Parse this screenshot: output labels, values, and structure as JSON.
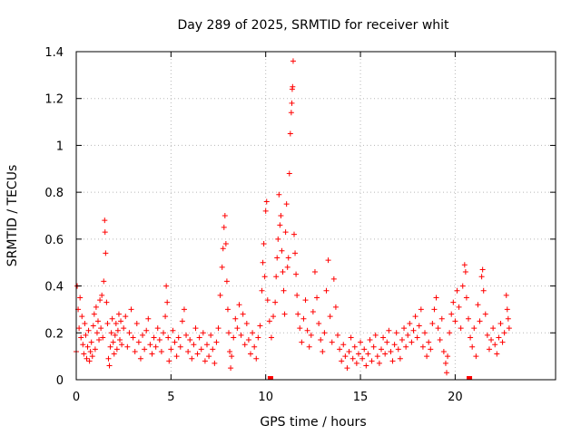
{
  "chart_data": {
    "type": "scatter",
    "title": "Day 289 of 2025, SRMTID for receiver whit",
    "xlabel": "GPS time / hours",
    "ylabel": "SRMTID / TECUs",
    "xlim": [
      0,
      25.3
    ],
    "ylim": [
      0,
      1.4
    ],
    "grid": true,
    "marker": "plus",
    "color": "#ff0000",
    "x_ticks": [
      0,
      5,
      10,
      15,
      20
    ],
    "x_tick_labels": [
      "0",
      "5",
      "10",
      "15",
      "20"
    ],
    "y_ticks": [
      0,
      0.2,
      0.4,
      0.6,
      0.8,
      1.0,
      1.2,
      1.4
    ],
    "y_tick_labels": [
      "0",
      "0.2",
      "0.4",
      "0.6",
      "0.8",
      "1",
      "1.2",
      "1.4"
    ],
    "series": [
      {
        "name": "SRMTID",
        "points": [
          [
            0.0,
            0.12
          ],
          [
            0.05,
            0.4
          ],
          [
            0.1,
            0.3
          ],
          [
            0.15,
            0.22
          ],
          [
            0.2,
            0.35
          ],
          [
            0.25,
            0.18
          ],
          [
            0.3,
            0.27
          ],
          [
            0.35,
            0.15
          ],
          [
            0.4,
            0.11
          ],
          [
            0.45,
            0.24
          ],
          [
            0.5,
            0.19
          ],
          [
            0.55,
            0.09
          ],
          [
            0.6,
            0.14
          ],
          [
            0.65,
            0.21
          ],
          [
            0.7,
            0.08
          ],
          [
            0.75,
            0.12
          ],
          [
            0.8,
            0.16
          ],
          [
            0.85,
            0.1
          ],
          [
            0.9,
            0.23
          ],
          [
            0.95,
            0.28
          ],
          [
            1.0,
            0.13
          ],
          [
            1.05,
            0.31
          ],
          [
            1.1,
            0.2
          ],
          [
            1.15,
            0.25
          ],
          [
            1.2,
            0.17
          ],
          [
            1.25,
            0.34
          ],
          [
            1.3,
            0.22
          ],
          [
            1.35,
            0.36
          ],
          [
            1.4,
            0.18
          ],
          [
            1.45,
            0.42
          ],
          [
            1.5,
            0.68
          ],
          [
            1.52,
            0.63
          ],
          [
            1.55,
            0.54
          ],
          [
            1.6,
            0.33
          ],
          [
            1.65,
            0.24
          ],
          [
            1.7,
            0.09
          ],
          [
            1.75,
            0.06
          ],
          [
            1.8,
            0.14
          ],
          [
            1.85,
            0.2
          ],
          [
            1.9,
            0.26
          ],
          [
            1.95,
            0.16
          ],
          [
            2.0,
            0.11
          ],
          [
            2.05,
            0.19
          ],
          [
            2.1,
            0.24
          ],
          [
            2.15,
            0.13
          ],
          [
            2.2,
            0.21
          ],
          [
            2.25,
            0.28
          ],
          [
            2.3,
            0.17
          ],
          [
            2.35,
            0.25
          ],
          [
            2.4,
            0.15
          ],
          [
            2.5,
            0.22
          ],
          [
            2.6,
            0.27
          ],
          [
            2.7,
            0.14
          ],
          [
            2.8,
            0.2
          ],
          [
            2.9,
            0.3
          ],
          [
            3.0,
            0.18
          ],
          [
            3.1,
            0.12
          ],
          [
            3.2,
            0.24
          ],
          [
            3.3,
            0.16
          ],
          [
            3.4,
            0.09
          ],
          [
            3.5,
            0.19
          ],
          [
            3.6,
            0.13
          ],
          [
            3.7,
            0.21
          ],
          [
            3.8,
            0.26
          ],
          [
            3.9,
            0.15
          ],
          [
            4.0,
            0.11
          ],
          [
            4.1,
            0.18
          ],
          [
            4.2,
            0.14
          ],
          [
            4.3,
            0.22
          ],
          [
            4.4,
            0.17
          ],
          [
            4.5,
            0.12
          ],
          [
            4.6,
            0.2
          ],
          [
            4.7,
            0.27
          ],
          [
            4.75,
            0.4
          ],
          [
            4.8,
            0.33
          ],
          [
            4.85,
            0.18
          ],
          [
            4.9,
            0.08
          ],
          [
            5.0,
            0.13
          ],
          [
            5.1,
            0.21
          ],
          [
            5.2,
            0.16
          ],
          [
            5.3,
            0.1
          ],
          [
            5.4,
            0.18
          ],
          [
            5.5,
            0.14
          ],
          [
            5.6,
            0.25
          ],
          [
            5.7,
            0.3
          ],
          [
            5.8,
            0.19
          ],
          [
            5.9,
            0.12
          ],
          [
            6.0,
            0.17
          ],
          [
            6.1,
            0.09
          ],
          [
            6.2,
            0.15
          ],
          [
            6.3,
            0.22
          ],
          [
            6.4,
            0.11
          ],
          [
            6.5,
            0.18
          ],
          [
            6.6,
            0.13
          ],
          [
            6.7,
            0.2
          ],
          [
            6.8,
            0.08
          ],
          [
            6.9,
            0.15
          ],
          [
            7.0,
            0.1
          ],
          [
            7.1,
            0.19
          ],
          [
            7.2,
            0.13
          ],
          [
            7.3,
            0.07
          ],
          [
            7.4,
            0.16
          ],
          [
            7.5,
            0.22
          ],
          [
            7.6,
            0.36
          ],
          [
            7.7,
            0.48
          ],
          [
            7.75,
            0.56
          ],
          [
            7.8,
            0.65
          ],
          [
            7.85,
            0.7
          ],
          [
            7.9,
            0.58
          ],
          [
            7.95,
            0.42
          ],
          [
            8.0,
            0.3
          ],
          [
            8.05,
            0.2
          ],
          [
            8.1,
            0.12
          ],
          [
            8.15,
            0.05
          ],
          [
            8.2,
            0.1
          ],
          [
            8.3,
            0.18
          ],
          [
            8.4,
            0.26
          ],
          [
            8.5,
            0.22
          ],
          [
            8.6,
            0.32
          ],
          [
            8.7,
            0.19
          ],
          [
            8.8,
            0.28
          ],
          [
            8.9,
            0.15
          ],
          [
            9.0,
            0.24
          ],
          [
            9.1,
            0.17
          ],
          [
            9.2,
            0.11
          ],
          [
            9.3,
            0.2
          ],
          [
            9.4,
            0.14
          ],
          [
            9.5,
            0.09
          ],
          [
            9.6,
            0.18
          ],
          [
            9.7,
            0.23
          ],
          [
            9.8,
            0.38
          ],
          [
            9.85,
            0.5
          ],
          [
            9.9,
            0.58
          ],
          [
            9.95,
            0.44
          ],
          [
            10.0,
            0.72
          ],
          [
            10.05,
            0.76
          ],
          [
            10.1,
            0.34
          ],
          [
            10.2,
            0.25
          ],
          [
            10.3,
            0.18
          ],
          [
            10.4,
            0.27
          ],
          [
            10.5,
            0.33
          ],
          [
            10.55,
            0.44
          ],
          [
            10.6,
            0.52
          ],
          [
            10.65,
            0.6
          ],
          [
            10.7,
            0.79
          ],
          [
            10.75,
            0.66
          ],
          [
            10.8,
            0.7
          ],
          [
            10.85,
            0.55
          ],
          [
            10.9,
            0.46
          ],
          [
            10.95,
            0.38
          ],
          [
            11.0,
            0.28
          ],
          [
            11.05,
            0.63
          ],
          [
            11.1,
            0.75
          ],
          [
            11.15,
            0.48
          ],
          [
            11.2,
            0.52
          ],
          [
            11.25,
            0.88
          ],
          [
            11.3,
            1.05
          ],
          [
            11.35,
            1.14
          ],
          [
            11.38,
            1.18
          ],
          [
            11.4,
            1.24
          ],
          [
            11.42,
            1.25
          ],
          [
            11.45,
            1.36
          ],
          [
            11.5,
            0.62
          ],
          [
            11.55,
            0.54
          ],
          [
            11.6,
            0.45
          ],
          [
            11.65,
            0.36
          ],
          [
            11.7,
            0.28
          ],
          [
            11.8,
            0.22
          ],
          [
            11.9,
            0.16
          ],
          [
            12.0,
            0.26
          ],
          [
            12.1,
            0.34
          ],
          [
            12.2,
            0.21
          ],
          [
            12.3,
            0.14
          ],
          [
            12.4,
            0.19
          ],
          [
            12.5,
            0.29
          ],
          [
            12.6,
            0.46
          ],
          [
            12.7,
            0.35
          ],
          [
            12.8,
            0.24
          ],
          [
            12.9,
            0.17
          ],
          [
            13.0,
            0.12
          ],
          [
            13.1,
            0.2
          ],
          [
            13.2,
            0.38
          ],
          [
            13.3,
            0.51
          ],
          [
            13.4,
            0.27
          ],
          [
            13.5,
            0.16
          ],
          [
            13.6,
            0.43
          ],
          [
            13.7,
            0.31
          ],
          [
            13.8,
            0.19
          ],
          [
            13.9,
            0.13
          ],
          [
            14.0,
            0.08
          ],
          [
            14.1,
            0.15
          ],
          [
            14.2,
            0.1
          ],
          [
            14.3,
            0.05
          ],
          [
            14.4,
            0.12
          ],
          [
            14.5,
            0.18
          ],
          [
            14.6,
            0.09
          ],
          [
            14.7,
            0.14
          ],
          [
            14.8,
            0.07
          ],
          [
            14.9,
            0.11
          ],
          [
            15.0,
            0.16
          ],
          [
            15.1,
            0.09
          ],
          [
            15.2,
            0.13
          ],
          [
            15.3,
            0.06
          ],
          [
            15.4,
            0.11
          ],
          [
            15.5,
            0.17
          ],
          [
            15.6,
            0.08
          ],
          [
            15.7,
            0.14
          ],
          [
            15.8,
            0.19
          ],
          [
            15.9,
            0.1
          ],
          [
            16.0,
            0.07
          ],
          [
            16.1,
            0.13
          ],
          [
            16.2,
            0.18
          ],
          [
            16.3,
            0.11
          ],
          [
            16.4,
            0.16
          ],
          [
            16.5,
            0.21
          ],
          [
            16.6,
            0.12
          ],
          [
            16.7,
            0.08
          ],
          [
            16.8,
            0.15
          ],
          [
            16.9,
            0.2
          ],
          [
            17.0,
            0.13
          ],
          [
            17.1,
            0.09
          ],
          [
            17.2,
            0.17
          ],
          [
            17.3,
            0.22
          ],
          [
            17.4,
            0.14
          ],
          [
            17.5,
            0.19
          ],
          [
            17.6,
            0.24
          ],
          [
            17.7,
            0.16
          ],
          [
            17.8,
            0.21
          ],
          [
            17.9,
            0.27
          ],
          [
            18.0,
            0.18
          ],
          [
            18.1,
            0.23
          ],
          [
            18.2,
            0.3
          ],
          [
            18.3,
            0.14
          ],
          [
            18.4,
            0.2
          ],
          [
            18.5,
            0.1
          ],
          [
            18.6,
            0.16
          ],
          [
            18.7,
            0.13
          ],
          [
            18.8,
            0.24
          ],
          [
            18.9,
            0.3
          ],
          [
            19.0,
            0.35
          ],
          [
            19.1,
            0.22
          ],
          [
            19.2,
            0.17
          ],
          [
            19.3,
            0.26
          ],
          [
            19.4,
            0.12
          ],
          [
            19.5,
            0.07
          ],
          [
            19.55,
            0.03
          ],
          [
            19.6,
            0.1
          ],
          [
            19.7,
            0.2
          ],
          [
            19.8,
            0.28
          ],
          [
            19.9,
            0.33
          ],
          [
            20.0,
            0.25
          ],
          [
            20.1,
            0.38
          ],
          [
            20.2,
            0.31
          ],
          [
            20.3,
            0.22
          ],
          [
            20.4,
            0.4
          ],
          [
            20.5,
            0.49
          ],
          [
            20.55,
            0.46
          ],
          [
            20.6,
            0.35
          ],
          [
            20.7,
            0.26
          ],
          [
            20.8,
            0.18
          ],
          [
            20.9,
            0.14
          ],
          [
            21.0,
            0.22
          ],
          [
            21.1,
            0.1
          ],
          [
            21.2,
            0.32
          ],
          [
            21.3,
            0.25
          ],
          [
            21.4,
            0.44
          ],
          [
            21.45,
            0.47
          ],
          [
            21.5,
            0.38
          ],
          [
            21.6,
            0.28
          ],
          [
            21.7,
            0.19
          ],
          [
            21.8,
            0.13
          ],
          [
            21.9,
            0.17
          ],
          [
            22.0,
            0.22
          ],
          [
            22.1,
            0.15
          ],
          [
            22.2,
            0.11
          ],
          [
            22.3,
            0.18
          ],
          [
            22.4,
            0.24
          ],
          [
            22.5,
            0.16
          ],
          [
            22.6,
            0.2
          ],
          [
            22.7,
            0.36
          ],
          [
            22.75,
            0.3
          ],
          [
            22.8,
            0.26
          ],
          [
            22.85,
            0.22
          ]
        ]
      }
    ],
    "gap_markers": [
      10.25,
      20.75
    ]
  }
}
